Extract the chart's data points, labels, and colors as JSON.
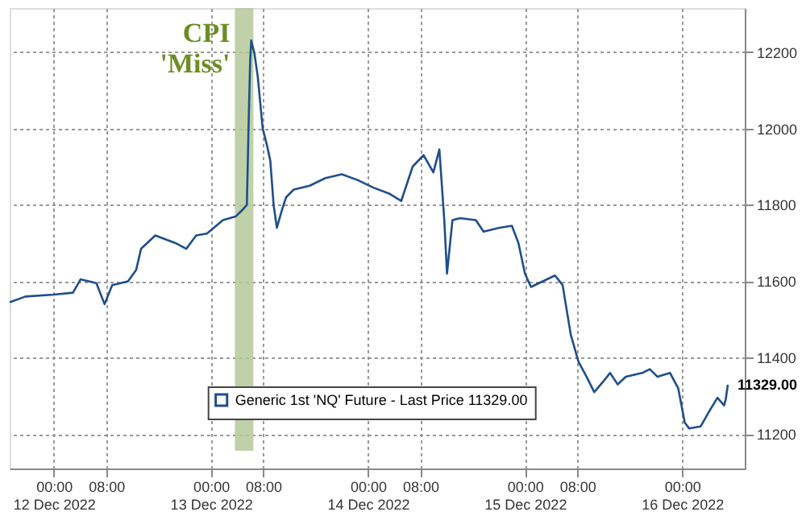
{
  "chart_data": {
    "type": "line",
    "x": [
      "2022-12-11T17:15",
      "2022-12-11T19:40",
      "2022-12-12T00:00",
      "2022-12-12T02:55",
      "2022-12-12T04:05",
      "2022-12-12T06:30",
      "2022-12-12T07:45",
      "2022-12-12T08:55",
      "2022-12-12T11:20",
      "2022-12-12T12:35",
      "2022-12-12T13:20",
      "2022-12-12T15:30",
      "2022-12-12T18:35",
      "2022-12-12T20:15",
      "2022-12-12T21:45",
      "2022-12-12T23:25",
      "2022-12-13T01:50",
      "2022-12-13T03:50",
      "2022-12-13T05:00",
      "2022-12-13T05:30",
      "2022-12-13T05:45",
      "2022-12-13T06:00",
      "2022-12-13T06:10",
      "2022-12-13T06:40",
      "2022-12-13T07:10",
      "2022-12-13T07:55",
      "2022-12-13T08:35",
      "2022-12-13T09:05",
      "2022-12-13T09:35",
      "2022-12-13T10:05",
      "2022-12-13T10:50",
      "2022-12-13T11:30",
      "2022-12-13T12:40",
      "2022-12-13T15:05",
      "2022-12-13T17:30",
      "2022-12-13T20:00",
      "2022-12-13T22:25",
      "2022-12-14T00:50",
      "2022-12-14T03:10",
      "2022-12-14T05:05",
      "2022-12-14T06:50",
      "2022-12-14T08:30",
      "2022-12-14T10:00",
      "2022-12-14T10:55",
      "2022-12-14T11:40",
      "2022-12-14T12:05",
      "2022-12-14T12:55",
      "2022-12-14T14:05",
      "2022-12-14T16:30",
      "2022-12-14T17:40",
      "2022-12-14T20:05",
      "2022-12-14T22:00",
      "2022-12-14T23:00",
      "2022-12-15T00:00",
      "2022-12-15T00:55",
      "2022-12-15T04:35",
      "2022-12-15T05:45",
      "2022-12-15T07:00",
      "2022-12-15T08:10",
      "2022-12-15T09:25",
      "2022-12-15T10:35",
      "2022-12-15T11:50",
      "2022-12-15T13:00",
      "2022-12-15T14:10",
      "2022-12-15T15:25",
      "2022-12-15T17:55",
      "2022-12-15T19:05",
      "2022-12-15T20:15",
      "2022-12-15T22:10",
      "2022-12-15T23:25",
      "2022-12-16T00:25",
      "2022-12-16T01:05",
      "2022-12-16T02:50",
      "2022-12-16T04:10",
      "2022-12-16T05:25",
      "2022-12-16T06:25",
      "2022-12-16T06:40",
      "2022-12-16T07:00"
    ],
    "series": [
      {
        "name": "Generic 1st 'NQ' Future - Last Price 11329.00",
        "color": "#1f4e8c",
        "values": [
          11545,
          11560,
          11565,
          11570,
          11605,
          11595,
          11540,
          11590,
          11600,
          11630,
          11685,
          11720,
          11700,
          11685,
          11720,
          11725,
          11760,
          11770,
          11790,
          11800,
          12000,
          12175,
          12230,
          12195,
          12135,
          12000,
          11955,
          11915,
          11800,
          11740,
          11785,
          11820,
          11840,
          11850,
          11870,
          11880,
          11865,
          11845,
          11830,
          11810,
          11900,
          11930,
          11885,
          11945,
          11760,
          11620,
          11760,
          11765,
          11760,
          11730,
          11740,
          11745,
          11700,
          11620,
          11585,
          11615,
          11590,
          11460,
          11390,
          11350,
          11310,
          11335,
          11360,
          11330,
          11350,
          11360,
          11370,
          11350,
          11360,
          11320,
          11230,
          11215,
          11220,
          11260,
          11295,
          11275,
          11290,
          11329
        ]
      }
    ],
    "xlim": [
      "2022-12-11T17:15",
      "2022-12-16T09:35"
    ],
    "xticks": [
      {
        "value": "2022-12-12T00:00",
        "label": "00:00\n12 Dec 2022"
      },
      {
        "value": "2022-12-12T08:00",
        "label": "08:00"
      },
      {
        "value": "2022-12-13T00:00",
        "label": "00:00\n13 Dec 2022"
      },
      {
        "value": "2022-12-13T08:00",
        "label": "08:00"
      },
      {
        "value": "2022-12-14T00:00",
        "label": "00:00\n14 Dec 2022"
      },
      {
        "value": "2022-12-14T08:00",
        "label": "08:00"
      },
      {
        "value": "2022-12-15T00:00",
        "label": "00:00\n15 Dec 2022"
      },
      {
        "value": "2022-12-15T08:00",
        "label": "08:00"
      },
      {
        "value": "2022-12-16T00:00",
        "label": "00:00\n16 Dec 2022"
      }
    ],
    "ylim": [
      11110,
      12315
    ],
    "yticks": [
      11200,
      11400,
      11600,
      11800,
      12000,
      12200
    ],
    "bands": [
      {
        "axis": "x",
        "from": "2022-12-13T03:40",
        "to": "2022-12-13T06:30",
        "label": "CPI\n'Miss'",
        "color": "#b5c99a"
      }
    ],
    "annotations": [
      {
        "text": "11329.00",
        "x": "2022-12-16T07:00",
        "y": 11329
      }
    ],
    "grid": true,
    "legend": "bottom"
  }
}
